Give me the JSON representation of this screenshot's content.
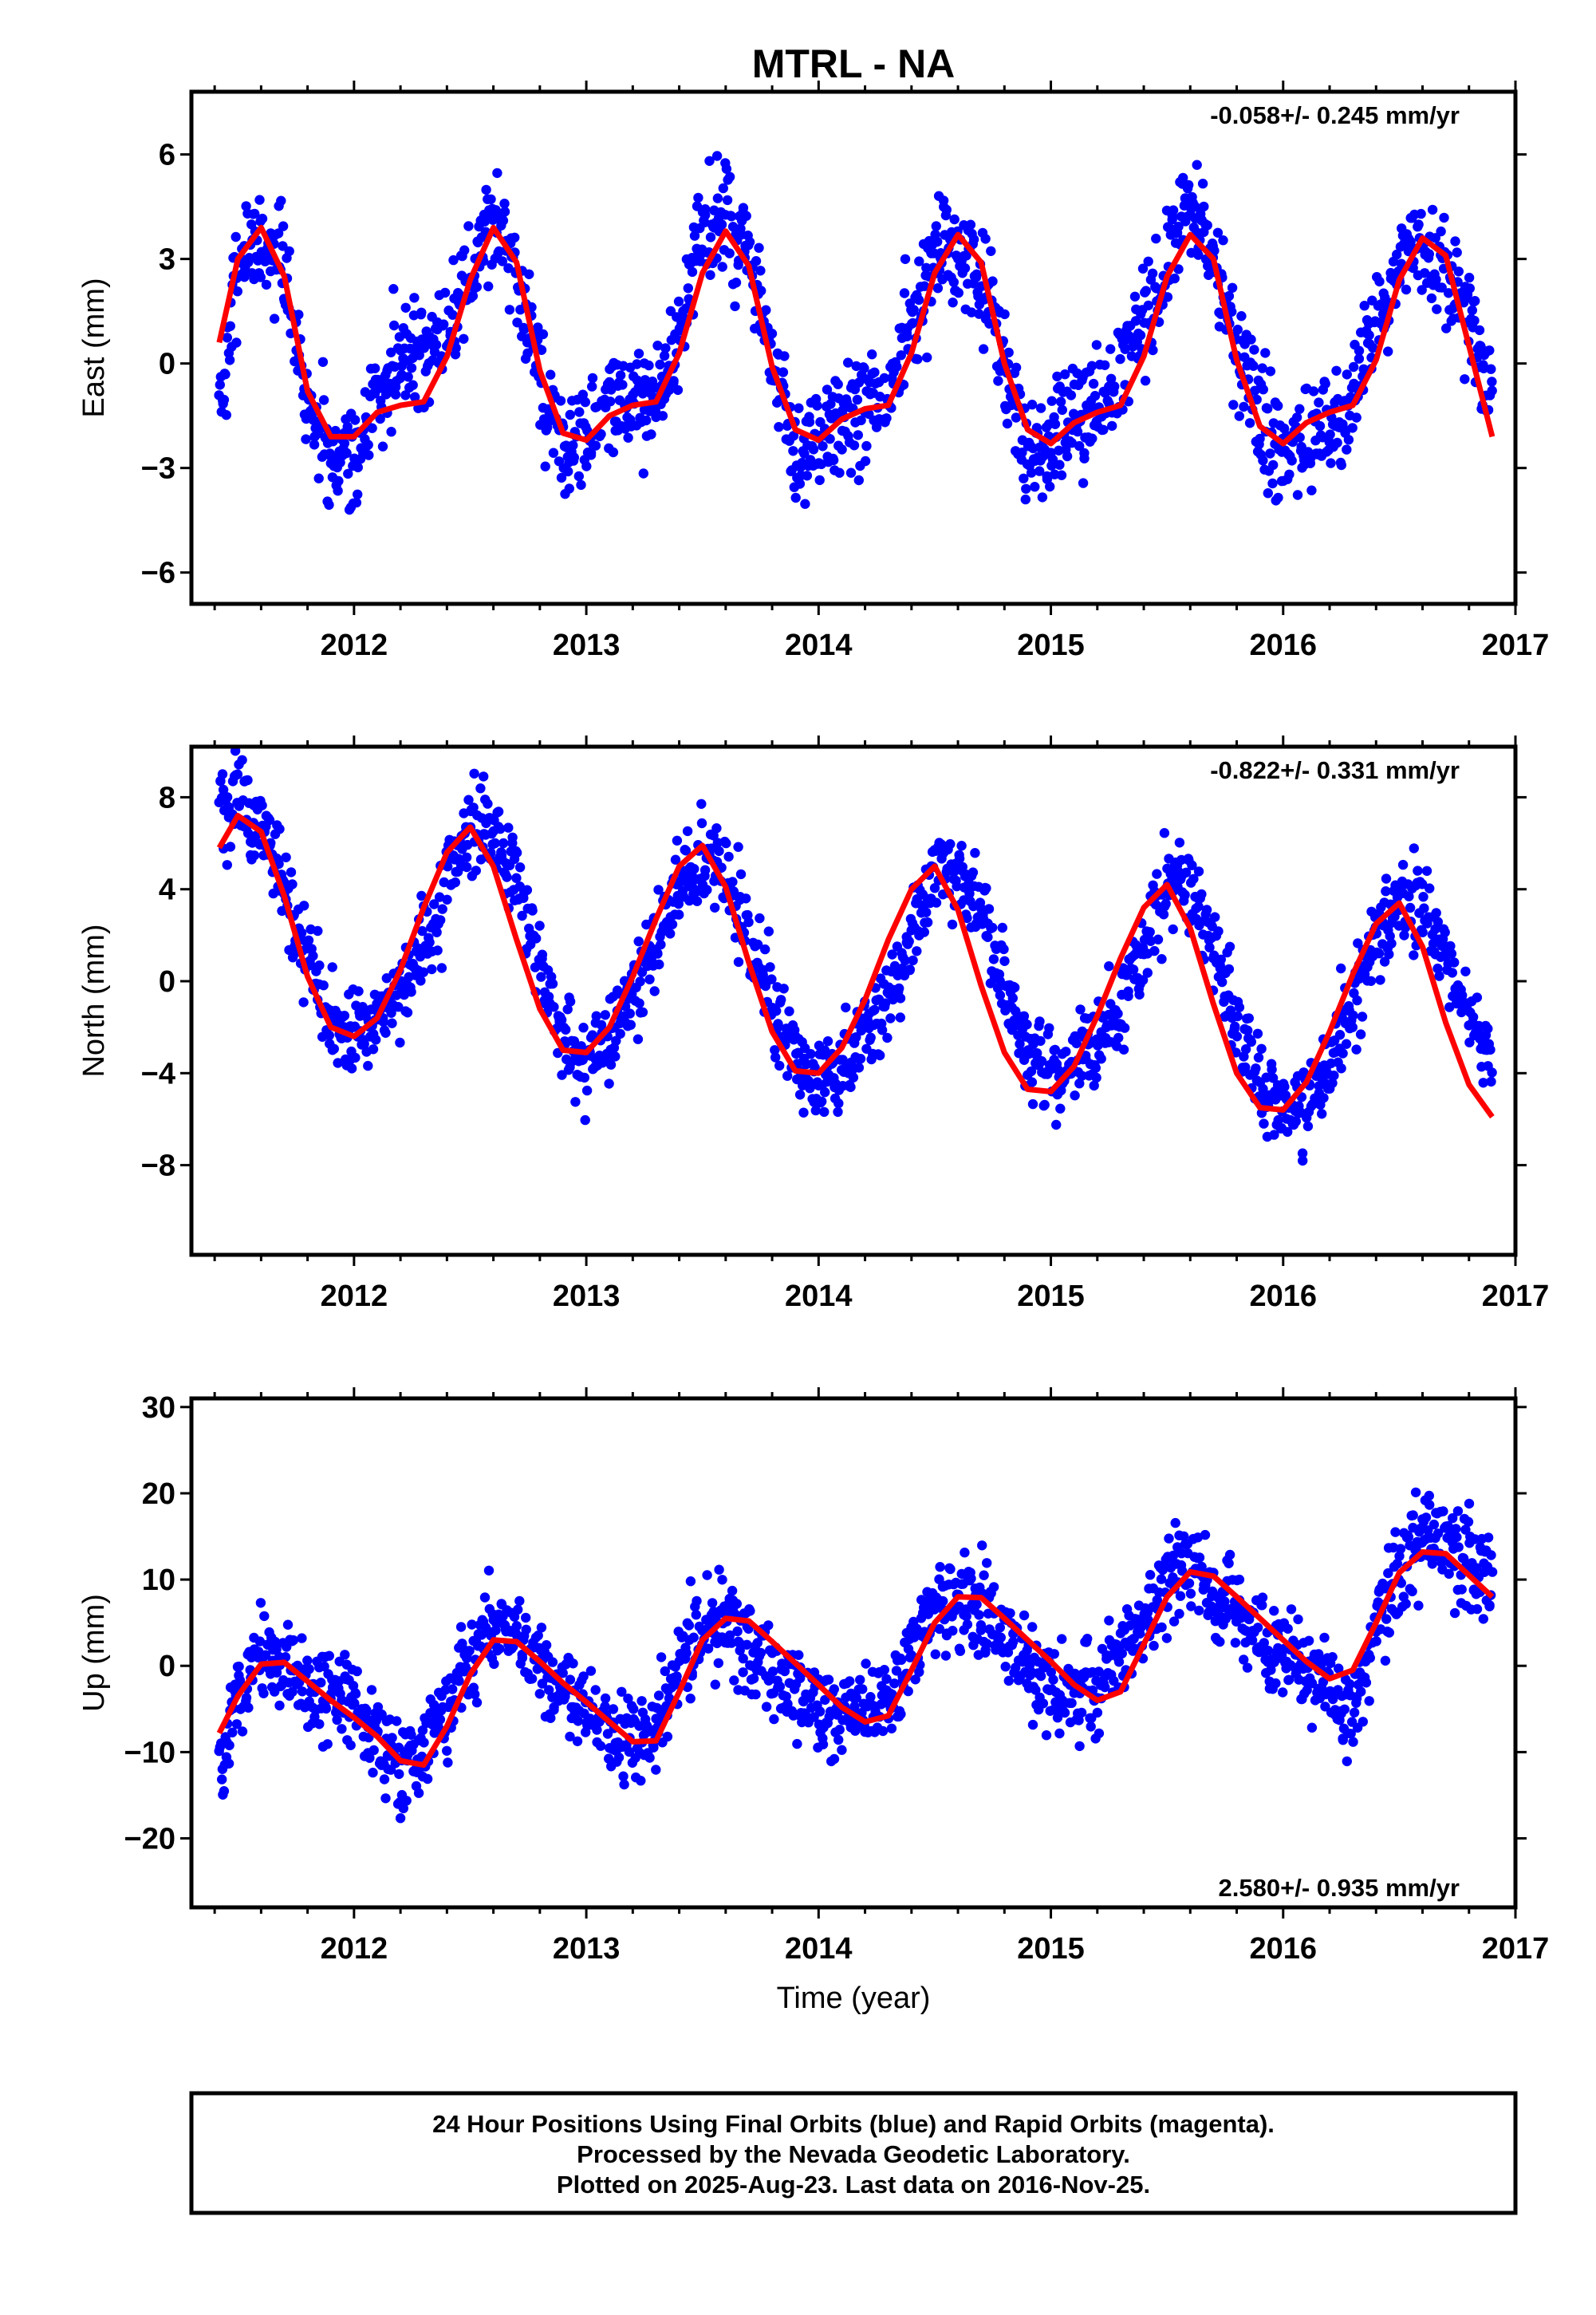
{
  "title": "MTRL - NA",
  "xlabel": "Time (year)",
  "footer": {
    "line1": "24 Hour Positions Using Final Orbits (blue) and Rapid Orbits (magenta).",
    "line2": "Processed by the Nevada Geodetic Laboratory.",
    "line3": "Plotted on 2025-Aug-23. Last data on 2016-Nov-25."
  },
  "colors": {
    "points": "#0000ff",
    "fit": "#ff0000",
    "frame": "#000000"
  },
  "chart_data": [
    {
      "type": "scatter",
      "ylabel": "East (mm)",
      "rate_text": "-0.058+/- 0.245 mm/yr",
      "rate_position": "top-right",
      "xlim": [
        2011.3,
        2017.0
      ],
      "ylim": [
        -6.9,
        7.8
      ],
      "x_ticks": [
        2012,
        2013,
        2014,
        2015,
        2016,
        2017
      ],
      "y_ticks": [
        6,
        3,
        0,
        -3,
        -6
      ],
      "y_tick_labels": [
        "6",
        "3",
        "0",
        "−3",
        "−6"
      ],
      "data_range": [
        2011.42,
        2016.9
      ],
      "series": [
        {
          "kind": "points",
          "x": [
            2011.42,
            2011.5,
            2011.6,
            2011.7,
            2011.8,
            2011.9,
            2012.0,
            2012.1,
            2012.2,
            2012.3,
            2012.4,
            2012.5,
            2012.6,
            2012.7,
            2012.8,
            2012.9,
            2013.0,
            2013.1,
            2013.2,
            2013.3,
            2013.4,
            2013.5,
            2013.6,
            2013.7,
            2013.8,
            2013.9,
            2014.0,
            2014.1,
            2014.2,
            2014.3,
            2014.4,
            2014.5,
            2014.6,
            2014.7,
            2014.8,
            2014.9,
            2015.0,
            2015.1,
            2015.2,
            2015.3,
            2015.4,
            2015.5,
            2015.6,
            2015.7,
            2015.8,
            2015.9,
            2016.0,
            2016.1,
            2016.2,
            2016.3,
            2016.4,
            2016.5,
            2016.6,
            2016.7,
            2016.9
          ],
          "y": [
            -1.5,
            2.8,
            3.8,
            2.5,
            -1.0,
            -2.7,
            -2.5,
            -1.0,
            0.3,
            0.5,
            0.9,
            2.5,
            4.3,
            2.7,
            -0.5,
            -2.3,
            -2.3,
            -1.3,
            -1.2,
            -1.0,
            0.8,
            3.8,
            4.3,
            3.0,
            -0.2,
            -2.5,
            -2.6,
            -1.5,
            -1.3,
            -1.0,
            1.3,
            3.0,
            3.3,
            2.3,
            0.0,
            -2.5,
            -2.3,
            -1.5,
            -1.0,
            -0.3,
            1.3,
            3.0,
            4.5,
            3.2,
            0.5,
            -1.5,
            -2.5,
            -2.3,
            -2.0,
            -1.0,
            1.3,
            2.8,
            3.3,
            3.0,
            -0.8
          ],
          "spread": 1.3
        },
        {
          "kind": "fit_line",
          "x": [
            2011.42,
            2011.5,
            2011.6,
            2011.7,
            2011.8,
            2011.9,
            2012.0,
            2012.1,
            2012.2,
            2012.3,
            2012.4,
            2012.5,
            2012.6,
            2012.7,
            2012.8,
            2012.9,
            2013.0,
            2013.1,
            2013.2,
            2013.3,
            2013.4,
            2013.5,
            2013.6,
            2013.7,
            2013.8,
            2013.9,
            2014.0,
            2014.1,
            2014.2,
            2014.3,
            2014.4,
            2014.5,
            2014.6,
            2014.7,
            2014.8,
            2014.9,
            2015.0,
            2015.1,
            2015.2,
            2015.3,
            2015.4,
            2015.5,
            2015.6,
            2015.7,
            2015.8,
            2015.9,
            2016.0,
            2016.1,
            2016.2,
            2016.3,
            2016.4,
            2016.5,
            2016.6,
            2016.7,
            2016.8,
            2016.9
          ],
          "y": [
            0.6,
            3.0,
            3.9,
            2.5,
            -0.8,
            -2.1,
            -2.1,
            -1.4,
            -1.2,
            -1.1,
            0.2,
            2.4,
            3.9,
            2.9,
            -0.2,
            -2.0,
            -2.2,
            -1.5,
            -1.2,
            -1.1,
            0.3,
            2.6,
            3.8,
            2.8,
            -0.1,
            -1.9,
            -2.2,
            -1.6,
            -1.3,
            -1.2,
            0.3,
            2.6,
            3.7,
            2.9,
            0.0,
            -1.9,
            -2.3,
            -1.7,
            -1.4,
            -1.2,
            0.2,
            2.5,
            3.7,
            3.0,
            0.1,
            -1.8,
            -2.3,
            -1.7,
            -1.4,
            -1.2,
            0.1,
            2.4,
            3.6,
            3.1,
            0.5,
            -2.1
          ]
        }
      ]
    },
    {
      "type": "scatter",
      "ylabel": "North (mm)",
      "rate_text": "-0.822+/- 0.331 mm/yr",
      "rate_position": "top-right",
      "xlim": [
        2011.3,
        2017.0
      ],
      "ylim": [
        -11.9,
        10.2
      ],
      "x_ticks": [
        2012,
        2013,
        2014,
        2015,
        2016,
        2017
      ],
      "y_ticks": [
        8,
        4,
        0,
        -4,
        -8
      ],
      "y_tick_labels": [
        "8",
        "4",
        "0",
        "−4",
        "−8"
      ],
      "data_range": [
        2011.42,
        2016.9
      ],
      "series": [
        {
          "kind": "points",
          "x": [
            2011.42,
            2011.5,
            2011.6,
            2011.7,
            2011.8,
            2011.9,
            2012.0,
            2012.1,
            2012.2,
            2012.3,
            2012.4,
            2012.5,
            2012.6,
            2012.7,
            2012.8,
            2012.9,
            2013.0,
            2013.1,
            2013.2,
            2013.3,
            2013.4,
            2013.5,
            2013.6,
            2013.7,
            2013.8,
            2013.9,
            2014.0,
            2014.1,
            2014.2,
            2014.3,
            2014.4,
            2014.5,
            2014.6,
            2014.7,
            2014.8,
            2014.9,
            2015.0,
            2015.1,
            2015.2,
            2015.3,
            2015.4,
            2015.5,
            2015.6,
            2015.7,
            2015.8,
            2015.9,
            2016.0,
            2016.1,
            2016.2,
            2016.3,
            2016.4,
            2016.5,
            2016.6,
            2016.7,
            2016.9
          ],
          "y": [
            7.5,
            7.8,
            6.5,
            4.0,
            1.0,
            -1.5,
            -2.5,
            -2.0,
            -0.5,
            1.5,
            4.0,
            6.5,
            6.8,
            4.5,
            1.0,
            -2.5,
            -3.5,
            -2.5,
            -0.5,
            2.0,
            4.0,
            5.8,
            4.5,
            2.0,
            -1.0,
            -3.5,
            -4.5,
            -3.5,
            -2.5,
            -1.0,
            2.0,
            4.5,
            5.0,
            3.0,
            0.0,
            -3.5,
            -4.0,
            -3.5,
            -3.0,
            -1.0,
            2.0,
            4.0,
            4.0,
            1.5,
            -1.5,
            -4.5,
            -5.5,
            -5.0,
            -3.5,
            -1.0,
            2.0,
            3.5,
            3.5,
            1.0,
            -3.8
          ],
          "spread": 1.6
        },
        {
          "kind": "fit_line",
          "x": [
            2011.42,
            2011.5,
            2011.6,
            2011.7,
            2011.8,
            2011.9,
            2012.0,
            2012.1,
            2012.2,
            2012.3,
            2012.4,
            2012.5,
            2012.6,
            2012.7,
            2012.8,
            2012.9,
            2013.0,
            2013.1,
            2013.2,
            2013.3,
            2013.4,
            2013.5,
            2013.6,
            2013.7,
            2013.8,
            2013.9,
            2014.0,
            2014.1,
            2014.2,
            2014.3,
            2014.4,
            2014.5,
            2014.6,
            2014.7,
            2014.8,
            2014.9,
            2015.0,
            2015.1,
            2015.2,
            2015.3,
            2015.4,
            2015.5,
            2015.6,
            2015.7,
            2015.8,
            2015.9,
            2016.0,
            2016.1,
            2016.2,
            2016.3,
            2016.4,
            2016.5,
            2016.6,
            2016.7,
            2016.8,
            2016.9
          ],
          "y": [
            5.8,
            7.2,
            6.5,
            3.7,
            0.2,
            -2.0,
            -2.4,
            -1.6,
            0.5,
            3.2,
            5.6,
            6.7,
            5.0,
            1.8,
            -1.2,
            -3.0,
            -3.1,
            -2.0,
            0.2,
            2.7,
            5.0,
            5.9,
            4.1,
            0.8,
            -2.2,
            -3.9,
            -4.0,
            -2.9,
            -0.8,
            1.8,
            4.0,
            5.0,
            3.1,
            -0.2,
            -3.1,
            -4.7,
            -4.8,
            -3.7,
            -1.5,
            1.0,
            3.2,
            4.2,
            2.3,
            -1.0,
            -4.0,
            -5.5,
            -5.6,
            -4.4,
            -2.2,
            0.3,
            2.5,
            3.4,
            1.5,
            -1.8,
            -4.5,
            -5.9
          ]
        }
      ]
    },
    {
      "type": "scatter",
      "ylabel": "Up (mm)",
      "rate_text": "2.580+/- 0.935 mm/yr",
      "rate_position": "bottom-right",
      "xlim": [
        2011.3,
        2017.0
      ],
      "ylim": [
        -28,
        31
      ],
      "x_ticks": [
        2012,
        2013,
        2014,
        2015,
        2016,
        2017
      ],
      "y_ticks": [
        30,
        20,
        10,
        0,
        -10,
        -20
      ],
      "y_tick_labels": [
        "30",
        "20",
        "10",
        "0",
        "−10",
        "−20"
      ],
      "data_range": [
        2011.42,
        2016.9
      ],
      "series": [
        {
          "kind": "points",
          "x": [
            2011.42,
            2011.5,
            2011.6,
            2011.7,
            2011.8,
            2011.9,
            2012.0,
            2012.1,
            2012.2,
            2012.3,
            2012.4,
            2012.5,
            2012.6,
            2012.7,
            2012.8,
            2012.9,
            2013.0,
            2013.1,
            2013.2,
            2013.3,
            2013.4,
            2013.5,
            2013.6,
            2013.7,
            2013.8,
            2013.9,
            2014.0,
            2014.1,
            2014.2,
            2014.3,
            2014.4,
            2014.5,
            2014.6,
            2014.7,
            2014.8,
            2014.9,
            2015.0,
            2015.1,
            2015.2,
            2015.3,
            2015.4,
            2015.5,
            2015.6,
            2015.7,
            2015.8,
            2015.9,
            2016.0,
            2016.1,
            2016.2,
            2016.3,
            2016.4,
            2016.5,
            2016.6,
            2016.7,
            2016.9
          ],
          "y": [
            -14,
            -3,
            1,
            0,
            -2,
            -3,
            -5,
            -8,
            -12,
            -10,
            -5,
            2,
            5,
            3,
            0,
            -2,
            -5,
            -7,
            -9,
            -8,
            0,
            5,
            4,
            2,
            -1,
            -3,
            -5,
            -6,
            -5,
            -3,
            2,
            6,
            8,
            7,
            3,
            0,
            -2,
            -3,
            -3,
            2,
            6,
            10,
            12,
            9,
            6,
            3,
            1,
            0,
            -3,
            -6,
            5,
            10,
            16,
            14,
            10
          ],
          "spread": 4.5
        },
        {
          "kind": "fit_line",
          "x": [
            2011.42,
            2011.5,
            2011.6,
            2011.7,
            2011.8,
            2011.9,
            2012.0,
            2012.1,
            2012.2,
            2012.3,
            2012.4,
            2012.5,
            2012.6,
            2012.7,
            2012.8,
            2012.9,
            2013.0,
            2013.1,
            2013.2,
            2013.3,
            2013.4,
            2013.5,
            2013.6,
            2013.7,
            2013.8,
            2013.9,
            2014.0,
            2014.1,
            2014.2,
            2014.3,
            2014.4,
            2014.5,
            2014.6,
            2014.7,
            2014.8,
            2014.9,
            2015.0,
            2015.1,
            2015.2,
            2015.3,
            2015.4,
            2015.5,
            2015.6,
            2015.7,
            2015.8,
            2015.9,
            2016.0,
            2016.1,
            2016.2,
            2016.3,
            2016.4,
            2016.5,
            2016.6,
            2016.7,
            2016.8,
            2016.9
          ],
          "y": [
            -7.8,
            -3.5,
            0.2,
            0.4,
            -1.8,
            -4.0,
            -6.0,
            -8.2,
            -11.0,
            -11.5,
            -7.0,
            -1.0,
            3.0,
            2.8,
            0.5,
            -2.0,
            -4.2,
            -6.5,
            -8.8,
            -8.7,
            -3.0,
            3.0,
            5.5,
            5.2,
            2.8,
            0.3,
            -2.2,
            -4.8,
            -6.5,
            -5.8,
            -0.5,
            5.0,
            8.0,
            7.9,
            5.5,
            3.0,
            0.5,
            -2.2,
            -4.0,
            -3.0,
            2.5,
            8.0,
            10.9,
            10.4,
            8.0,
            5.5,
            3.0,
            0.5,
            -1.5,
            -0.5,
            5.0,
            10.8,
            13.2,
            13.0,
            10.5,
            8.0
          ]
        }
      ]
    }
  ]
}
